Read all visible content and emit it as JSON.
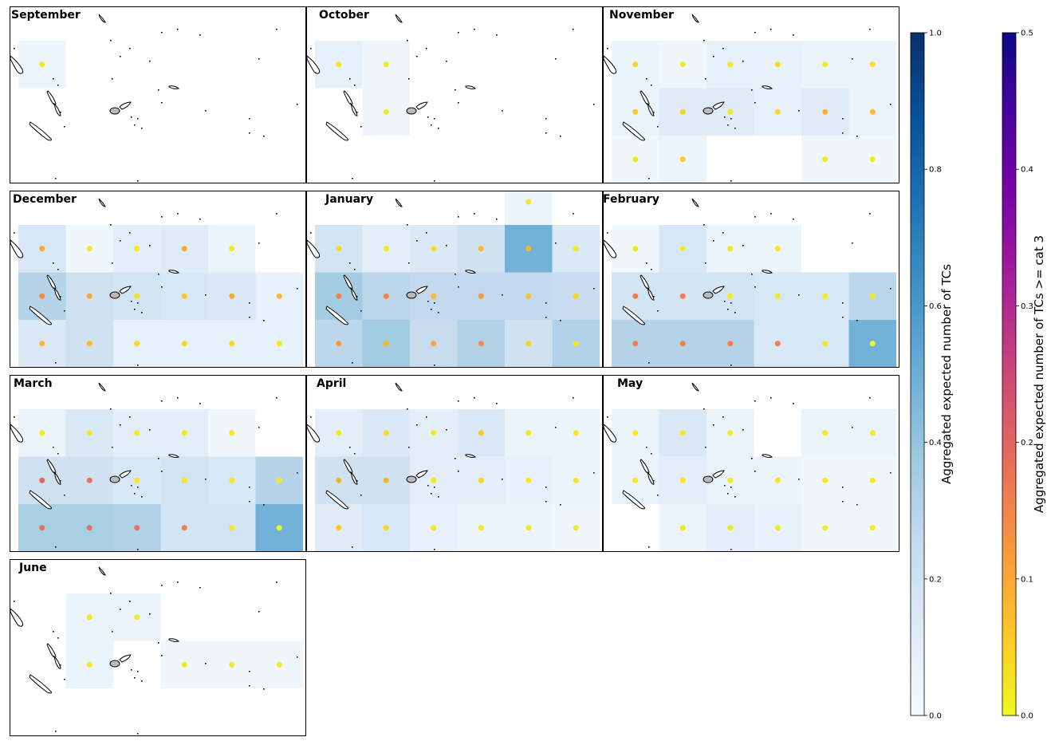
{
  "chart_data": {
    "type": "heatmap",
    "layout": "small-multiples",
    "grid": {
      "columns": 6,
      "rows": 3
    },
    "panels": [
      {
        "title": "September",
        "tc": [
          [
            0.05,
            null,
            null,
            null,
            null,
            null
          ],
          [
            null,
            null,
            null,
            null,
            null,
            null
          ],
          [
            null,
            null,
            null,
            null,
            null,
            null
          ]
        ],
        "cat3": [
          [
            0.02,
            null,
            null,
            null,
            null,
            null
          ],
          [
            null,
            null,
            null,
            null,
            null,
            null
          ],
          [
            null,
            null,
            null,
            null,
            null,
            null
          ]
        ]
      },
      {
        "title": "October",
        "tc": [
          [
            0.08,
            0.04,
            null,
            null,
            null,
            null
          ],
          [
            null,
            0.04,
            null,
            null,
            null,
            null
          ],
          [
            null,
            null,
            null,
            null,
            null,
            null
          ]
        ],
        "cat3": [
          [
            0.02,
            0.02,
            null,
            null,
            null,
            null
          ],
          [
            null,
            0.02,
            null,
            null,
            null,
            null
          ],
          [
            null,
            null,
            null,
            null,
            null,
            null
          ]
        ]
      },
      {
        "title": "November",
        "tc": [
          [
            0.06,
            0.04,
            0.08,
            0.08,
            0.06,
            0.06
          ],
          [
            0.06,
            0.12,
            0.12,
            0.08,
            0.12,
            0.06
          ],
          [
            0.04,
            0.06,
            null,
            null,
            0.04,
            0.04
          ]
        ],
        "cat3": [
          [
            0.04,
            0.02,
            0.02,
            0.04,
            0.02,
            0.03
          ],
          [
            0.06,
            0.04,
            0.02,
            0.04,
            0.09,
            0.07
          ],
          [
            0.02,
            0.06,
            null,
            null,
            0.02,
            0.02
          ]
        ]
      },
      {
        "title": "December",
        "tc": [
          [
            0.16,
            0.04,
            0.1,
            0.12,
            0.06,
            null
          ],
          [
            0.3,
            0.2,
            0.18,
            0.16,
            0.14,
            0.08
          ],
          [
            0.14,
            0.2,
            0.08,
            0.08,
            0.08,
            0.08
          ]
        ],
        "cat3": [
          [
            0.1,
            0.02,
            0.02,
            0.1,
            0.02,
            null
          ],
          [
            0.14,
            0.1,
            0.03,
            0.06,
            0.1,
            0.08
          ],
          [
            0.08,
            0.08,
            0.04,
            0.04,
            0.04,
            0.02
          ]
        ]
      },
      {
        "title": "January",
        "tc": [
          [
            0.18,
            0.1,
            0.14,
            0.2,
            0.48,
            0.14
          ],
          [
            0.36,
            0.28,
            0.26,
            0.26,
            0.26,
            0.24
          ],
          [
            0.28,
            0.36,
            0.24,
            0.32,
            0.2,
            0.32
          ]
        ],
        "cat3": [
          [
            0.04,
            0.02,
            0.03,
            0.08,
            0.08,
            0.02
          ],
          [
            0.15,
            0.15,
            0.08,
            0.12,
            0.07,
            0.05
          ],
          [
            0.12,
            0.08,
            0.1,
            0.14,
            0.05,
            0.02
          ]
        ],
        "extra": {
          "tc": 0.06,
          "cat3": 0.02
        }
      },
      {
        "title": "February",
        "tc": [
          [
            0.04,
            0.16,
            0.06,
            0.06,
            null,
            null
          ],
          [
            0.18,
            0.18,
            0.18,
            0.16,
            0.16,
            0.28
          ],
          [
            0.3,
            0.3,
            0.3,
            0.16,
            0.16,
            0.48
          ]
        ],
        "cat3": [
          [
            0.02,
            0.02,
            0.02,
            0.02,
            null,
            null
          ],
          [
            0.16,
            0.16,
            0.02,
            0.02,
            0.02,
            0.02
          ],
          [
            0.16,
            0.16,
            0.16,
            0.16,
            0.02,
            0.0
          ]
        ]
      },
      {
        "title": "March",
        "tc": [
          [
            0.06,
            0.14,
            0.1,
            0.1,
            0.04,
            null
          ],
          [
            0.2,
            0.2,
            0.16,
            0.18,
            0.16,
            0.3
          ],
          [
            0.34,
            0.34,
            0.32,
            0.18,
            0.18,
            0.48
          ]
        ],
        "cat3": [
          [
            0.02,
            0.02,
            0.02,
            0.02,
            0.02,
            null
          ],
          [
            0.2,
            0.18,
            0.02,
            0.02,
            0.02,
            0.02
          ],
          [
            0.18,
            0.18,
            0.18,
            0.16,
            0.02,
            0.0
          ]
        ]
      },
      {
        "title": "April",
        "tc": [
          [
            0.1,
            0.14,
            0.1,
            0.14,
            0.06,
            0.06
          ],
          [
            0.2,
            0.2,
            0.1,
            0.1,
            0.08,
            0.06
          ],
          [
            0.12,
            0.16,
            0.08,
            0.06,
            0.06,
            0.04
          ]
        ],
        "cat3": [
          [
            0.02,
            0.04,
            0.02,
            0.06,
            0.02,
            0.02
          ],
          [
            0.09,
            0.09,
            0.02,
            0.04,
            0.02,
            0.02
          ],
          [
            0.06,
            0.04,
            0.02,
            0.02,
            0.02,
            0.02
          ]
        ]
      },
      {
        "title": "May",
        "tc": [
          [
            0.06,
            0.14,
            0.06,
            null,
            0.06,
            0.06
          ],
          [
            0.06,
            0.1,
            0.06,
            0.06,
            0.04,
            0.04
          ],
          [
            null,
            0.06,
            0.1,
            0.08,
            0.04,
            0.04
          ]
        ],
        "cat3": [
          [
            0.02,
            0.02,
            0.02,
            null,
            0.02,
            0.02
          ],
          [
            0.02,
            0.02,
            0.02,
            0.02,
            0.02,
            0.02
          ],
          [
            null,
            0.02,
            0.02,
            0.02,
            0.02,
            0.02
          ]
        ]
      },
      {
        "title": "June",
        "tc": [
          [
            null,
            0.06,
            0.06,
            null,
            null,
            null
          ],
          [
            null,
            0.06,
            null,
            0.04,
            0.04,
            0.04
          ],
          [
            null,
            null,
            null,
            null,
            null,
            null
          ]
        ],
        "cat3": [
          [
            null,
            0.02,
            0.02,
            null,
            null,
            null
          ],
          [
            null,
            0.02,
            null,
            0.02,
            0.02,
            0.02
          ],
          [
            null,
            null,
            null,
            null,
            null,
            null
          ]
        ]
      }
    ],
    "colorbars": [
      {
        "label": "Aggregated expected number of TCs",
        "colormap": "Blues",
        "range": [
          0,
          1.0
        ],
        "ticks": [
          "0.0",
          "0.2",
          "0.4",
          "0.6",
          "0.8",
          "1.0"
        ]
      },
      {
        "label": "Aggregated expected number of TCs >= cat 3",
        "colormap": "plasma_r",
        "range": [
          0,
          0.5
        ],
        "ticks": [
          "0.0",
          "0.1",
          "0.2",
          "0.3",
          "0.4",
          "0.5"
        ]
      }
    ],
    "colors": {
      "blues": [
        "#f7fbff",
        "#deebf7",
        "#c6dbef",
        "#9ecae1",
        "#6baed6",
        "#4292c6",
        "#2171b5",
        "#08519c",
        "#08306b"
      ],
      "plasma_r": [
        "#f0f921",
        "#fdca26",
        "#fb9f3a",
        "#ed7953",
        "#d8576b",
        "#bd3786",
        "#9c179e",
        "#7201a8",
        "#46039f",
        "#0d0887"
      ]
    }
  }
}
